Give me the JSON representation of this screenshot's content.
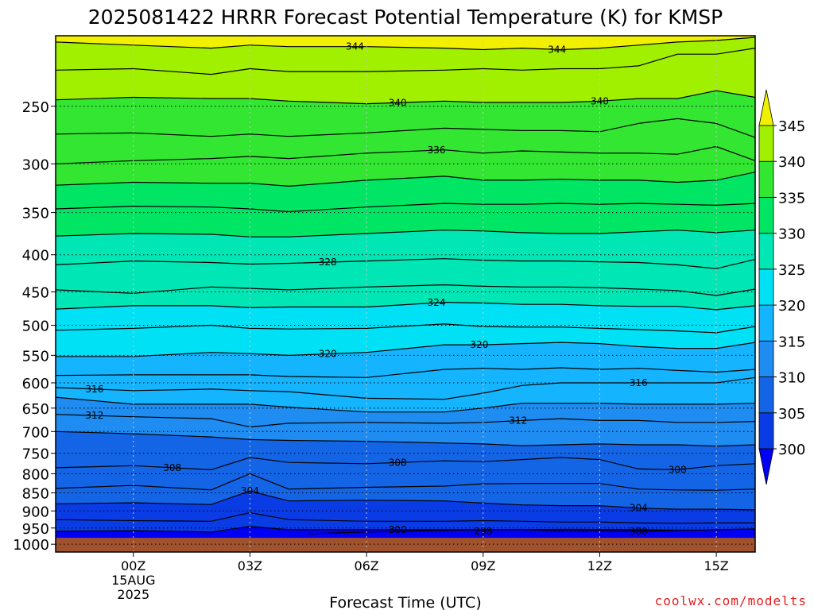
{
  "chart_data": {
    "type": "heatmap",
    "title": "2025081422 HRRR Forecast Potential Temperature (K) for KMSP",
    "xlabel": "Forecast Time (UTC)",
    "ylabel": "",
    "x_ticks": [
      {
        "hour": 0,
        "label": "00Z"
      },
      {
        "hour": 3,
        "label": "03Z"
      },
      {
        "hour": 6,
        "label": "06Z"
      },
      {
        "hour": 9,
        "label": "09Z"
      },
      {
        "hour": 12,
        "label": "12Z"
      },
      {
        "hour": 15,
        "label": "15Z"
      }
    ],
    "x_date_label": [
      "15AUG",
      "2025"
    ],
    "xlim_hours": [
      -2,
      16
    ],
    "y_ticks": [
      {
        "p": 250,
        "label": "250"
      },
      {
        "p": 300,
        "label": "300"
      },
      {
        "p": 350,
        "label": "350"
      },
      {
        "p": 400,
        "label": "400"
      },
      {
        "p": 450,
        "label": "450"
      },
      {
        "p": 500,
        "label": "500"
      },
      {
        "p": 550,
        "label": "550"
      },
      {
        "p": 600,
        "label": "600"
      },
      {
        "p": 650,
        "label": "650"
      },
      {
        "p": 700,
        "label": "700"
      },
      {
        "p": 750,
        "label": "750"
      },
      {
        "p": 800,
        "label": "800"
      },
      {
        "p": 850,
        "label": "850"
      },
      {
        "p": 900,
        "label": "900"
      },
      {
        "p": 950,
        "label": "950"
      },
      {
        "p": 1000,
        "label": "1000"
      }
    ],
    "ylim_hpa": [
      200,
      1025
    ],
    "y_scale": "log",
    "surface_hpa": 980,
    "grid": "dotted",
    "colorbar": {
      "placement": "right",
      "levels": [
        300,
        305,
        310,
        315,
        320,
        325,
        330,
        335,
        340,
        345
      ],
      "labels": [
        "300",
        "305",
        "310",
        "315",
        "320",
        "325",
        "330",
        "335",
        "340",
        "345"
      ],
      "colors": [
        "#0000f5",
        "#0a3ce6",
        "#1464e6",
        "#1e8cf0",
        "#14b4ff",
        "#00e1f5",
        "#00e6b4",
        "#00e664",
        "#32e632",
        "#a0f000",
        "#f0f000"
      ]
    },
    "contour_interval": 4,
    "times": [
      -2,
      0,
      2,
      3,
      4,
      6,
      8,
      9,
      10,
      11,
      12,
      13,
      14,
      15,
      16
    ],
    "isentropes": [
      {
        "theta": 344,
        "p": [
          204,
          206,
          208,
          206,
          207,
          207,
          208,
          209,
          208,
          209,
          208,
          206,
          204,
          203,
          201
        ]
      },
      {
        "theta": 342,
        "p": [
          223,
          222,
          226,
          222,
          224,
          224,
          223,
          222,
          223,
          222,
          222,
          220,
          212,
          212,
          208
        ]
      },
      {
        "theta": 340,
        "p": [
          245,
          243,
          244,
          244,
          246,
          248,
          246,
          247,
          247,
          247,
          246,
          244,
          244,
          238,
          243
        ]
      },
      {
        "theta": 338,
        "p": [
          273,
          272,
          275,
          273,
          275,
          272,
          268,
          269,
          270,
          270,
          271,
          264,
          260,
          264,
          276
        ]
      },
      {
        "theta": 336,
        "p": [
          300,
          297,
          295,
          293,
          295,
          290,
          287,
          290,
          288,
          289,
          290,
          290,
          291,
          284,
          297
        ]
      },
      {
        "theta": 334,
        "p": [
          321,
          318,
          319,
          319,
          322,
          316,
          312,
          316,
          316,
          315,
          316,
          316,
          318,
          316,
          308
        ]
      },
      {
        "theta": 332,
        "p": [
          346,
          343,
          344,
          346,
          349,
          344,
          340,
          341,
          341,
          340,
          341,
          340,
          341,
          342,
          340
        ]
      },
      {
        "theta": 330,
        "p": [
          377,
          374,
          375,
          378,
          378,
          374,
          370,
          371,
          373,
          374,
          374,
          372,
          370,
          373,
          370
        ]
      },
      {
        "theta": 328,
        "p": [
          413,
          408,
          410,
          412,
          411,
          408,
          405,
          407,
          408,
          408,
          409,
          410,
          413,
          418,
          406
        ]
      },
      {
        "theta": 326,
        "p": [
          447,
          452,
          443,
          445,
          447,
          443,
          440,
          442,
          443,
          443,
          444,
          446,
          448,
          455,
          446
        ]
      },
      {
        "theta": 324,
        "p": [
          475,
          470,
          470,
          473,
          472,
          472,
          465,
          466,
          468,
          468,
          470,
          471,
          471,
          476,
          470
        ]
      },
      {
        "theta": 322,
        "p": [
          508,
          505,
          500,
          505,
          506,
          505,
          498,
          502,
          503,
          503,
          505,
          507,
          509,
          512,
          502
        ]
      },
      {
        "theta": 320,
        "p": [
          552,
          552,
          545,
          547,
          550,
          545,
          532,
          532,
          530,
          528,
          530,
          535,
          538,
          538,
          528
        ]
      },
      {
        "theta": 318,
        "p": [
          586,
          585,
          585,
          585,
          588,
          590,
          575,
          573,
          575,
          572,
          575,
          573,
          577,
          580,
          575
        ]
      },
      {
        "theta": 316,
        "p": [
          609,
          615,
          612,
          615,
          617,
          630,
          632,
          620,
          605,
          600,
          600,
          600,
          600,
          600,
          590
        ]
      },
      {
        "theta": 314,
        "p": [
          628,
          642,
          642,
          642,
          648,
          658,
          658,
          650,
          640,
          640,
          640,
          642,
          642,
          642,
          640
        ]
      },
      {
        "theta": 312,
        "p": [
          663,
          668,
          672,
          690,
          682,
          680,
          682,
          680,
          676,
          672,
          676,
          676,
          680,
          680,
          678
        ]
      },
      {
        "theta": 310,
        "p": [
          700,
          705,
          712,
          718,
          720,
          722,
          726,
          728,
          732,
          730,
          728,
          730,
          730,
          733,
          730
        ]
      },
      {
        "theta": 308,
        "p": [
          785,
          780,
          790,
          760,
          772,
          775,
          768,
          770,
          765,
          760,
          765,
          788,
          790,
          780,
          775
        ]
      },
      {
        "theta": 306,
        "p": [
          838,
          830,
          842,
          800,
          840,
          835,
          832,
          826,
          825,
          825,
          825,
          840,
          842,
          843,
          840
        ]
      },
      {
        "theta": 304,
        "p": [
          880,
          877,
          882,
          845,
          872,
          870,
          872,
          878,
          883,
          885,
          885,
          892,
          895,
          895,
          897
        ]
      },
      {
        "theta": 302,
        "p": [
          925,
          928,
          930,
          905,
          925,
          930,
          930,
          928,
          930,
          932,
          932,
          935,
          936,
          935,
          935
        ]
      },
      {
        "theta": 300,
        "p": [
          960,
          958,
          962,
          945,
          955,
          955,
          955,
          955,
          955,
          958,
          958,
          960,
          958,
          955,
          953
        ]
      }
    ],
    "contour_labels": [
      {
        "theta": 344,
        "text": "344",
        "h": 5.7
      },
      {
        "theta": 344,
        "text": "344",
        "h": 10.9
      },
      {
        "theta": 340,
        "text": "340",
        "h": 6.8
      },
      {
        "theta": 340,
        "text": "340",
        "h": 12.0
      },
      {
        "theta": 336,
        "text": "336",
        "h": 7.8
      },
      {
        "theta": 328,
        "text": "328",
        "h": 5.0
      },
      {
        "theta": 324,
        "text": "324",
        "h": 7.8
      },
      {
        "theta": 320,
        "text": "320",
        "h": 5.0
      },
      {
        "theta": 320,
        "text": "320",
        "h": 8.9
      },
      {
        "theta": 316,
        "text": "316",
        "h": -1.0
      },
      {
        "theta": 316,
        "text": "316",
        "h": 13.0
      },
      {
        "theta": 312,
        "text": "312",
        "h": -1.0
      },
      {
        "theta": 312,
        "text": "312",
        "h": 9.9
      },
      {
        "theta": 308,
        "text": "308",
        "h": 1.0
      },
      {
        "theta": 308,
        "text": "308",
        "h": 6.8
      },
      {
        "theta": 308,
        "text": "308",
        "h": 14.0
      },
      {
        "theta": 304,
        "text": "304",
        "h": 3.0
      },
      {
        "theta": 304,
        "text": "304",
        "h": 13.0
      },
      {
        "theta": 300,
        "text": "300",
        "h": 6.8
      },
      {
        "theta": 300,
        "text": "300",
        "h": 13.0
      },
      {
        "theta": 298,
        "text": "298",
        "h": 9.0
      }
    ],
    "cold_pool": {
      "theta": 298,
      "start_hour": 4.5,
      "end_hour": 14.0,
      "p": 975
    }
  },
  "watermark": "coolwx.com/modelts"
}
